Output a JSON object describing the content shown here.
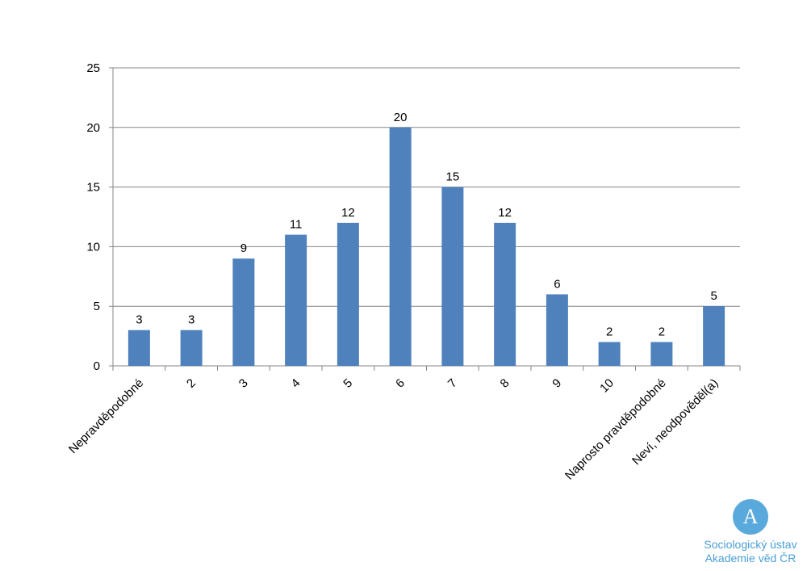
{
  "chart_data": {
    "type": "bar",
    "categories": [
      "Nepravděpodobné",
      "2",
      "3",
      "4",
      "5",
      "6",
      "7",
      "8",
      "9",
      "10",
      "Naprosto pravděpodobné",
      "Neví, neodpověděl(a)"
    ],
    "values": [
      3,
      3,
      9,
      11,
      12,
      20,
      15,
      12,
      6,
      2,
      2,
      5
    ],
    "color": "#4f81bd",
    "ylim": [
      0,
      25
    ],
    "yticks": [
      0,
      5,
      10,
      15,
      20,
      25
    ],
    "grid": true
  },
  "logo": {
    "name": "Sociologický ústav",
    "subtitle": "Akademie věd ČR"
  }
}
